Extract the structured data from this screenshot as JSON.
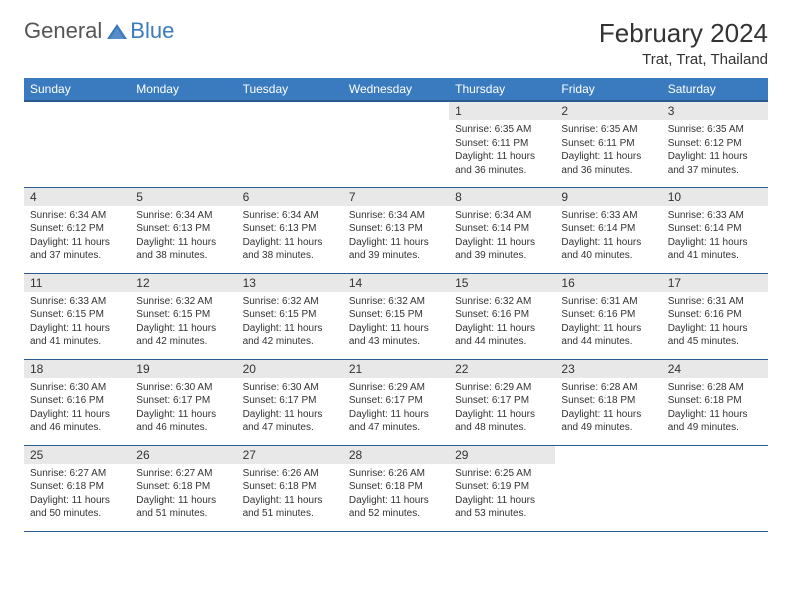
{
  "brand": {
    "part1": "General",
    "part2": "Blue"
  },
  "title": "February 2024",
  "location": "Trat, Trat, Thailand",
  "colors": {
    "header_bg": "#3a7bbf",
    "header_border": "#2a5a8f",
    "daynum_bg": "#e8e8e8",
    "text": "#333333",
    "white": "#ffffff"
  },
  "weekdays": [
    "Sunday",
    "Monday",
    "Tuesday",
    "Wednesday",
    "Thursday",
    "Friday",
    "Saturday"
  ],
  "cells": [
    {
      "blank": true
    },
    {
      "blank": true
    },
    {
      "blank": true
    },
    {
      "blank": true
    },
    {
      "day": "1",
      "sunrise": "6:35 AM",
      "sunset": "6:11 PM",
      "daylight": "11 hours and 36 minutes."
    },
    {
      "day": "2",
      "sunrise": "6:35 AM",
      "sunset": "6:11 PM",
      "daylight": "11 hours and 36 minutes."
    },
    {
      "day": "3",
      "sunrise": "6:35 AM",
      "sunset": "6:12 PM",
      "daylight": "11 hours and 37 minutes."
    },
    {
      "day": "4",
      "sunrise": "6:34 AM",
      "sunset": "6:12 PM",
      "daylight": "11 hours and 37 minutes."
    },
    {
      "day": "5",
      "sunrise": "6:34 AM",
      "sunset": "6:13 PM",
      "daylight": "11 hours and 38 minutes."
    },
    {
      "day": "6",
      "sunrise": "6:34 AM",
      "sunset": "6:13 PM",
      "daylight": "11 hours and 38 minutes."
    },
    {
      "day": "7",
      "sunrise": "6:34 AM",
      "sunset": "6:13 PM",
      "daylight": "11 hours and 39 minutes."
    },
    {
      "day": "8",
      "sunrise": "6:34 AM",
      "sunset": "6:14 PM",
      "daylight": "11 hours and 39 minutes."
    },
    {
      "day": "9",
      "sunrise": "6:33 AM",
      "sunset": "6:14 PM",
      "daylight": "11 hours and 40 minutes."
    },
    {
      "day": "10",
      "sunrise": "6:33 AM",
      "sunset": "6:14 PM",
      "daylight": "11 hours and 41 minutes."
    },
    {
      "day": "11",
      "sunrise": "6:33 AM",
      "sunset": "6:15 PM",
      "daylight": "11 hours and 41 minutes."
    },
    {
      "day": "12",
      "sunrise": "6:32 AM",
      "sunset": "6:15 PM",
      "daylight": "11 hours and 42 minutes."
    },
    {
      "day": "13",
      "sunrise": "6:32 AM",
      "sunset": "6:15 PM",
      "daylight": "11 hours and 42 minutes."
    },
    {
      "day": "14",
      "sunrise": "6:32 AM",
      "sunset": "6:15 PM",
      "daylight": "11 hours and 43 minutes."
    },
    {
      "day": "15",
      "sunrise": "6:32 AM",
      "sunset": "6:16 PM",
      "daylight": "11 hours and 44 minutes."
    },
    {
      "day": "16",
      "sunrise": "6:31 AM",
      "sunset": "6:16 PM",
      "daylight": "11 hours and 44 minutes."
    },
    {
      "day": "17",
      "sunrise": "6:31 AM",
      "sunset": "6:16 PM",
      "daylight": "11 hours and 45 minutes."
    },
    {
      "day": "18",
      "sunrise": "6:30 AM",
      "sunset": "6:16 PM",
      "daylight": "11 hours and 46 minutes."
    },
    {
      "day": "19",
      "sunrise": "6:30 AM",
      "sunset": "6:17 PM",
      "daylight": "11 hours and 46 minutes."
    },
    {
      "day": "20",
      "sunrise": "6:30 AM",
      "sunset": "6:17 PM",
      "daylight": "11 hours and 47 minutes."
    },
    {
      "day": "21",
      "sunrise": "6:29 AM",
      "sunset": "6:17 PM",
      "daylight": "11 hours and 47 minutes."
    },
    {
      "day": "22",
      "sunrise": "6:29 AM",
      "sunset": "6:17 PM",
      "daylight": "11 hours and 48 minutes."
    },
    {
      "day": "23",
      "sunrise": "6:28 AM",
      "sunset": "6:18 PM",
      "daylight": "11 hours and 49 minutes."
    },
    {
      "day": "24",
      "sunrise": "6:28 AM",
      "sunset": "6:18 PM",
      "daylight": "11 hours and 49 minutes."
    },
    {
      "day": "25",
      "sunrise": "6:27 AM",
      "sunset": "6:18 PM",
      "daylight": "11 hours and 50 minutes."
    },
    {
      "day": "26",
      "sunrise": "6:27 AM",
      "sunset": "6:18 PM",
      "daylight": "11 hours and 51 minutes."
    },
    {
      "day": "27",
      "sunrise": "6:26 AM",
      "sunset": "6:18 PM",
      "daylight": "11 hours and 51 minutes."
    },
    {
      "day": "28",
      "sunrise": "6:26 AM",
      "sunset": "6:18 PM",
      "daylight": "11 hours and 52 minutes."
    },
    {
      "day": "29",
      "sunrise": "6:25 AM",
      "sunset": "6:19 PM",
      "daylight": "11 hours and 53 minutes."
    },
    {
      "blank": true
    },
    {
      "blank": true
    }
  ],
  "labels": {
    "sunrise_prefix": "Sunrise: ",
    "sunset_prefix": "Sunset: ",
    "daylight_prefix": "Daylight: "
  }
}
